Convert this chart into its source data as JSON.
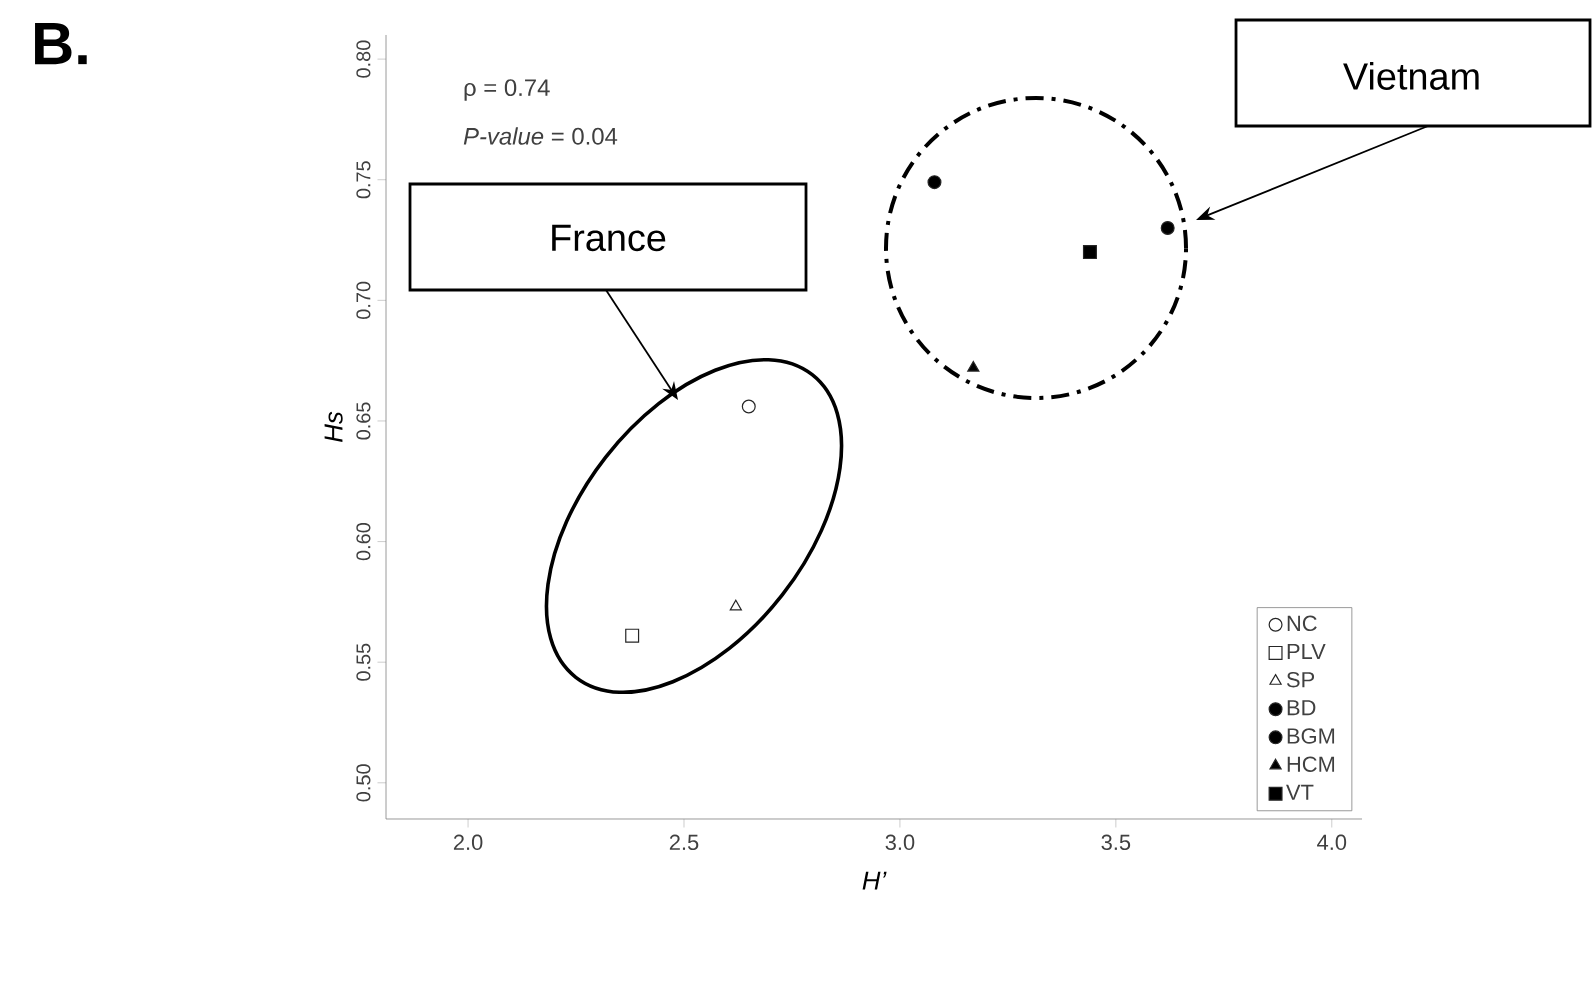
{
  "chart_data": {
    "type": "scatter",
    "title": "B.",
    "xlabel": "H’",
    "ylabel": "Hs",
    "xlim": [
      1.81,
      4.07
    ],
    "ylim": [
      0.485,
      0.81
    ],
    "xticks": [
      {
        "value": 2,
        "label": "2.0"
      },
      {
        "value": 2.5,
        "label": "2.5"
      },
      {
        "value": 3,
        "label": "3.0"
      },
      {
        "value": 3.5,
        "label": "3.5"
      },
      {
        "value": 4,
        "label": "4.0"
      }
    ],
    "yticks": [
      {
        "value": 0.5,
        "label": "0.50"
      },
      {
        "value": 0.55,
        "label": "0.55"
      },
      {
        "value": 0.6,
        "label": "0.60"
      },
      {
        "value": 0.65,
        "label": "0.65"
      },
      {
        "value": 0.7,
        "label": "0.70"
      },
      {
        "value": 0.75,
        "label": "0.75"
      },
      {
        "value": 0.8,
        "label": "0.80"
      }
    ],
    "grid": false,
    "legend": "bottom right",
    "annotations": [
      "ρ = 0.74",
      "*P-value* = 0.04",
      "France",
      "Vietnam"
    ],
    "series": [
      {
        "name": "NC",
        "color": "#ffffff",
        "marker": "circle",
        "x": [
          2.65
        ],
        "values": [
          0.656
        ]
      },
      {
        "name": "PLV",
        "color": "#ffffff",
        "marker": "square",
        "x": [
          2.38
        ],
        "values": [
          0.561
        ]
      },
      {
        "name": "SP",
        "color": "#ffffff",
        "marker": "triangle",
        "x": [
          2.62
        ],
        "values": [
          0.573
        ]
      },
      {
        "name": "BD",
        "color": "#000000",
        "marker": "circle",
        "x": [
          3.62
        ],
        "values": [
          0.73
        ]
      },
      {
        "name": "BGM",
        "color": "#000000",
        "marker": "circle",
        "x": [
          3.08
        ],
        "values": [
          0.749
        ]
      },
      {
        "name": "HCM",
        "color": "#000000",
        "marker": "triangle",
        "x": [
          3.17
        ],
        "values": [
          0.672
        ]
      },
      {
        "name": "VT",
        "color": "#000000",
        "marker": "square",
        "x": [
          3.44
        ],
        "values": [
          0.72
        ]
      }
    ]
  }
}
